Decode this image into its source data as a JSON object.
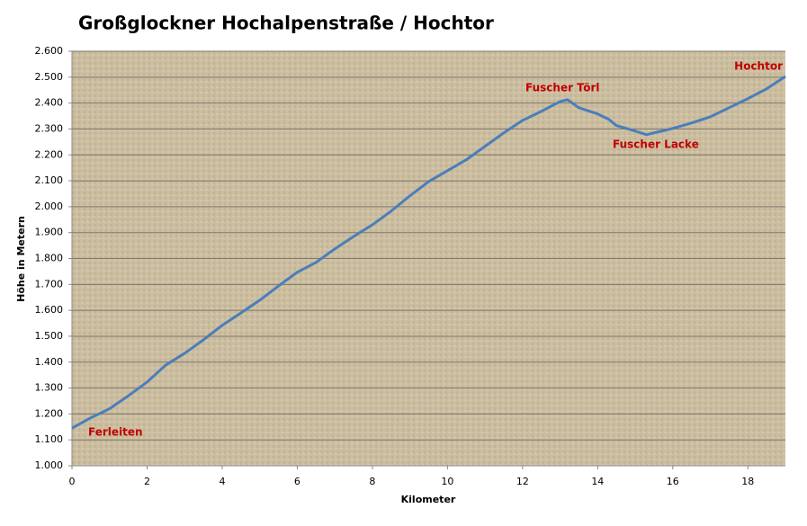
{
  "chart_data": {
    "type": "line",
    "title": "Großglockner  Hochalpenstraße / Hochtor",
    "x_label": "Kilometer",
    "y_label": "Höhe in Metern",
    "annotations": [
      "Ferleiten",
      "Fuscher Törl",
      "Fuscher Lacke",
      "Hochtor"
    ],
    "x": [
      0,
      0.5,
      1,
      1.5,
      2,
      2.5,
      3,
      3.5,
      4,
      4.5,
      5,
      5.5,
      6,
      6.5,
      7,
      7.5,
      8,
      8.5,
      9,
      9.5,
      10,
      10.5,
      11,
      11.5,
      12,
      12.5,
      13,
      13.2,
      13.5,
      14,
      14.3,
      14.5,
      15,
      15.3,
      15.5,
      16,
      16.5,
      17,
      17.5,
      18,
      18.5,
      19
    ],
    "series": [
      {
        "name": "Höhe",
        "color": "#4a7ebb",
        "values": [
          1145,
          1185,
          1220,
          1270,
          1323,
          1389,
          1434,
          1486,
          1542,
          1590,
          1639,
          1694,
          1747,
          1785,
          1837,
          1885,
          1930,
          1983,
          2042,
          2097,
          2139,
          2181,
          2233,
          2285,
          2333,
          2368,
          2406,
          2413,
          2382,
          2358,
          2337,
          2313,
          2292,
          2278,
          2285,
          2302,
          2323,
          2347,
          2382,
          2417,
          2455,
          2503
        ]
      }
    ],
    "xlim": [
      0,
      19
    ],
    "xticks": [
      0,
      2,
      4,
      6,
      8,
      10,
      12,
      14,
      16,
      18
    ],
    "ylim": [
      1000,
      2600
    ],
    "yticks": [
      {
        "value": 1000,
        "label": "1.000"
      },
      {
        "value": 1100,
        "label": "1.100"
      },
      {
        "value": 1200,
        "label": "1.200"
      },
      {
        "value": 1300,
        "label": "1.300"
      },
      {
        "value": 1400,
        "label": "1.400"
      },
      {
        "value": 1500,
        "label": "1.500"
      },
      {
        "value": 1600,
        "label": "1.600"
      },
      {
        "value": 1700,
        "label": "1.700"
      },
      {
        "value": 1800,
        "label": "1.800"
      },
      {
        "value": 1900,
        "label": "1.900"
      },
      {
        "value": 2000,
        "label": "2.000"
      },
      {
        "value": 2100,
        "label": "2.100"
      },
      {
        "value": 2200,
        "label": "2.200"
      },
      {
        "value": 2300,
        "label": "2.300"
      },
      {
        "value": 2400,
        "label": "2.400"
      },
      {
        "value": 2500,
        "label": "2.500"
      },
      {
        "value": 2600,
        "label": "2.600"
      }
    ],
    "grid": true
  }
}
